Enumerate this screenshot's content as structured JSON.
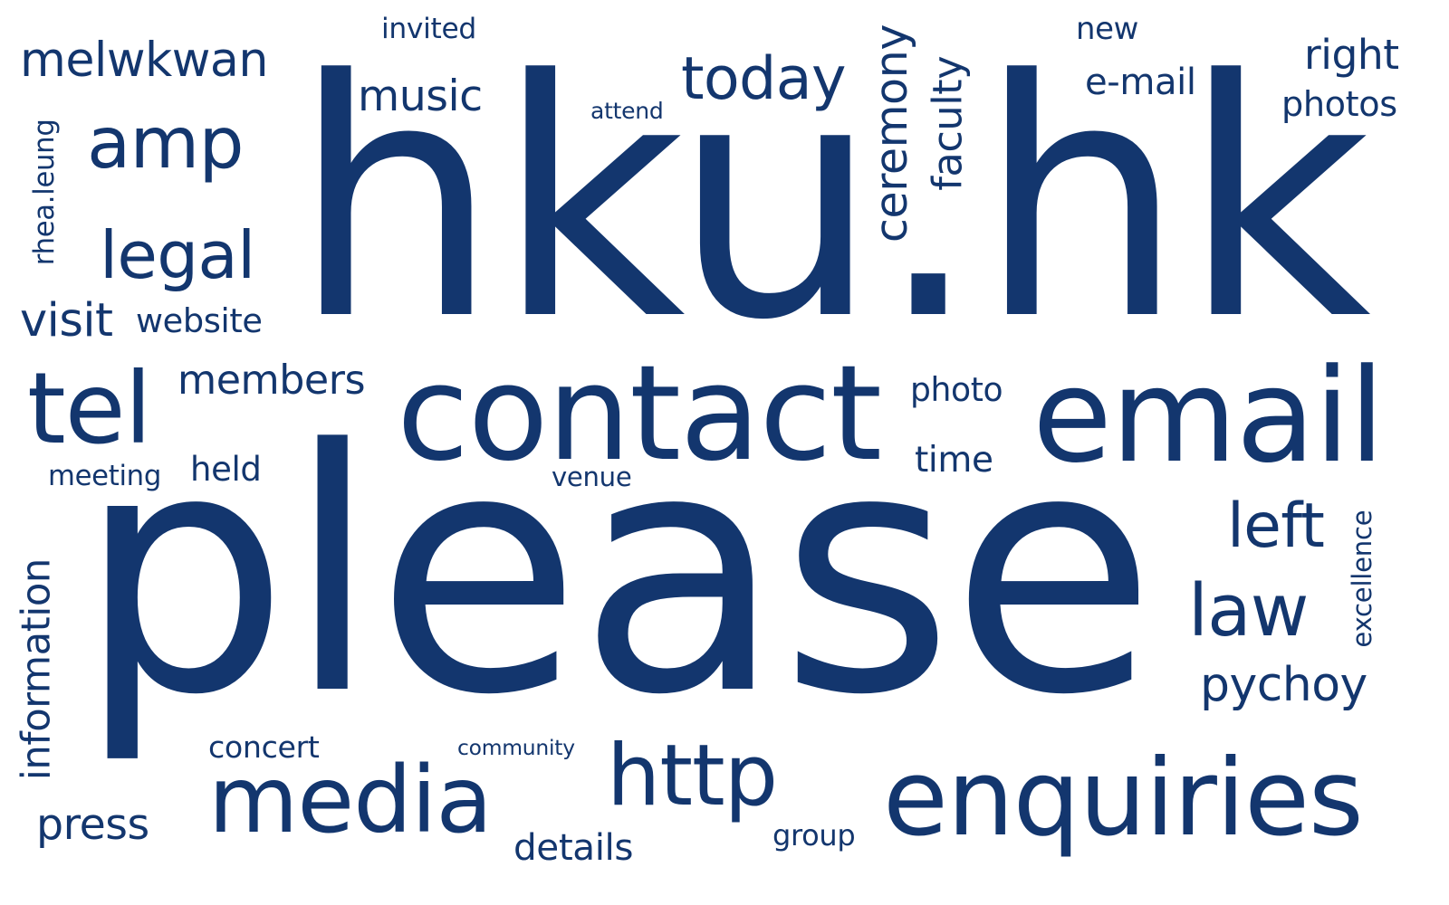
{
  "theme": {
    "word_color": "#13366E",
    "background": "#FFFFFF"
  },
  "words": [
    {
      "key": "hku-hk",
      "text": "hku.hk",
      "orientation": "horizontal"
    },
    {
      "key": "please",
      "text": "please",
      "orientation": "horizontal"
    },
    {
      "key": "contact",
      "text": "contact",
      "orientation": "horizontal"
    },
    {
      "key": "email",
      "text": "email",
      "orientation": "horizontal"
    },
    {
      "key": "enquiries",
      "text": "enquiries",
      "orientation": "horizontal"
    },
    {
      "key": "media",
      "text": "media",
      "orientation": "horizontal"
    },
    {
      "key": "http",
      "text": "http",
      "orientation": "horizontal"
    },
    {
      "key": "tel",
      "text": "tel",
      "orientation": "horizontal"
    },
    {
      "key": "amp",
      "text": "amp",
      "orientation": "horizontal"
    },
    {
      "key": "legal",
      "text": "legal",
      "orientation": "horizontal"
    },
    {
      "key": "today",
      "text": "today",
      "orientation": "horizontal"
    },
    {
      "key": "law",
      "text": "law",
      "orientation": "horizontal"
    },
    {
      "key": "left",
      "text": "left",
      "orientation": "horizontal"
    },
    {
      "key": "pychoy",
      "text": "pychoy",
      "orientation": "horizontal"
    },
    {
      "key": "melwkwan",
      "text": "melwkwan",
      "orientation": "horizontal"
    },
    {
      "key": "music",
      "text": "music",
      "orientation": "horizontal"
    },
    {
      "key": "visit",
      "text": "visit",
      "orientation": "horizontal"
    },
    {
      "key": "members",
      "text": "members",
      "orientation": "horizontal"
    },
    {
      "key": "right",
      "text": "right",
      "orientation": "horizontal"
    },
    {
      "key": "e-mail",
      "text": "e-mail",
      "orientation": "horizontal"
    },
    {
      "key": "press",
      "text": "press",
      "orientation": "horizontal"
    },
    {
      "key": "details",
      "text": "details",
      "orientation": "horizontal"
    },
    {
      "key": "photos",
      "text": "photos",
      "orientation": "horizontal"
    },
    {
      "key": "website",
      "text": "website",
      "orientation": "horizontal"
    },
    {
      "key": "photo",
      "text": "photo",
      "orientation": "horizontal"
    },
    {
      "key": "time",
      "text": "time",
      "orientation": "horizontal"
    },
    {
      "key": "held",
      "text": "held",
      "orientation": "horizontal"
    },
    {
      "key": "concert",
      "text": "concert",
      "orientation": "horizontal"
    },
    {
      "key": "invited",
      "text": "invited",
      "orientation": "horizontal"
    },
    {
      "key": "new",
      "text": "new",
      "orientation": "horizontal"
    },
    {
      "key": "meeting",
      "text": "meeting",
      "orientation": "horizontal"
    },
    {
      "key": "venue",
      "text": "venue",
      "orientation": "horizontal"
    },
    {
      "key": "group",
      "text": "group",
      "orientation": "horizontal"
    },
    {
      "key": "attend",
      "text": "attend",
      "orientation": "horizontal"
    },
    {
      "key": "community",
      "text": "community",
      "orientation": "horizontal"
    },
    {
      "key": "ceremony",
      "text": "ceremony",
      "orientation": "vertical"
    },
    {
      "key": "faculty",
      "text": "faculty",
      "orientation": "vertical"
    },
    {
      "key": "rhea-leung",
      "text": "rhea.leung",
      "orientation": "vertical"
    },
    {
      "key": "information",
      "text": "information",
      "orientation": "vertical"
    },
    {
      "key": "excellence",
      "text": "excellence",
      "orientation": "vertical"
    }
  ]
}
